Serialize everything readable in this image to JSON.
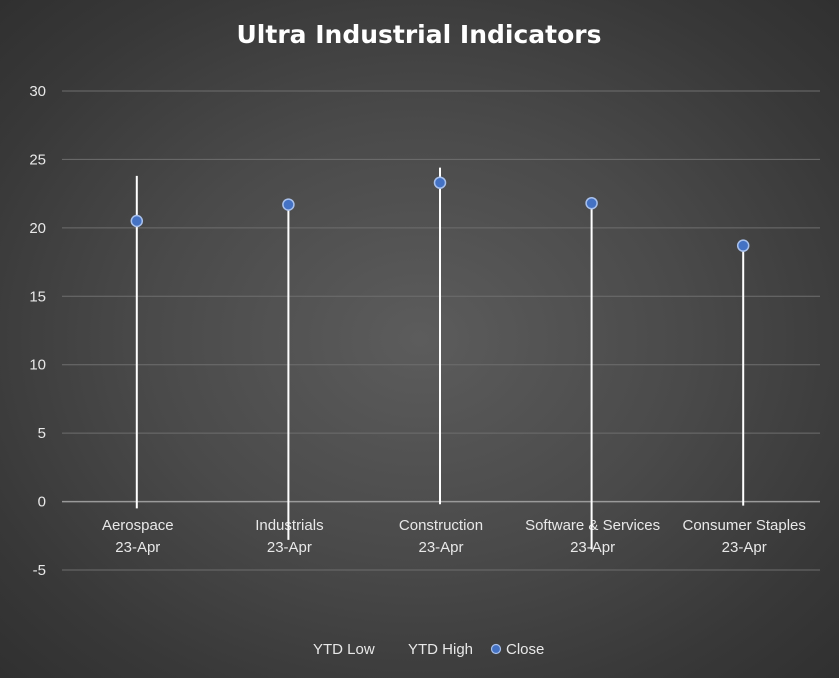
{
  "chart_data": {
    "type": "stock",
    "title": "Ultra Industrial Indicators",
    "categories": [
      [
        "Aerospace",
        "23-Apr"
      ],
      [
        "Industrials",
        "23-Apr"
      ],
      [
        "Construction",
        "23-Apr"
      ],
      [
        "Software & Services",
        "23-Apr"
      ],
      [
        "Consumer Staples",
        "23-Apr"
      ]
    ],
    "series": [
      {
        "name": "YTD Low",
        "values": [
          -0.5,
          -2.8,
          -0.2,
          -3.5,
          -0.3
        ]
      },
      {
        "name": "YTD High",
        "values": [
          23.8,
          21.6,
          24.4,
          21.8,
          18.6
        ]
      },
      {
        "name": "Close",
        "values": [
          20.5,
          21.7,
          23.3,
          21.8,
          18.7
        ]
      }
    ],
    "yticks": [
      "30",
      "25",
      "20",
      "15",
      "10",
      "5",
      "0",
      "-5"
    ],
    "ylim": [
      -5,
      30
    ],
    "grid": true,
    "legend_position": "bottom",
    "colors": {
      "line": "#ffffff",
      "marker_fill": "#4472c4",
      "marker_stroke": "#a9c1ec",
      "grid": "#6e6e6e",
      "axis": "#9a9a9a",
      "text": "#e8e8e8"
    }
  }
}
